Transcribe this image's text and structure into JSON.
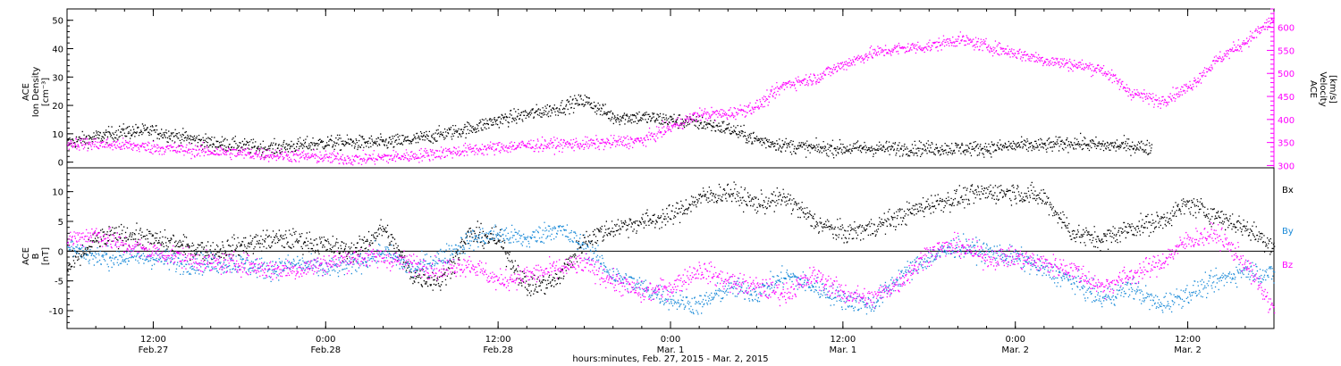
{
  "colors": {
    "black": "#000000",
    "magenta": "#ff00ff",
    "blue": "#1a8ad8"
  },
  "chart_data": [
    {
      "type": "scatter",
      "panel": "top",
      "ylabel_left": [
        "ACE",
        "Ion Density",
        "[cm⁻³]"
      ],
      "ylabel_right": [
        "ACE",
        "Velocity",
        "[km/s]"
      ],
      "ylim_left": [
        -2,
        54
      ],
      "ylim_right": [
        295,
        640
      ],
      "yticks_left": [
        0,
        10,
        20,
        30,
        40,
        50
      ],
      "yticks_right": [
        300,
        350,
        400,
        450,
        500,
        550,
        600
      ],
      "series": [
        {
          "axis": "left",
          "color": "black",
          "points_hours": [
            [
              0,
              7
            ],
            [
              2,
              9
            ],
            [
              4,
              11
            ],
            [
              6,
              11
            ],
            [
              8,
              9
            ],
            [
              10,
              7
            ],
            [
              12,
              6
            ],
            [
              14,
              5
            ],
            [
              16,
              6
            ],
            [
              18,
              7
            ],
            [
              20,
              7
            ],
            [
              22,
              7
            ],
            [
              24,
              8
            ],
            [
              26,
              10
            ],
            [
              28,
              12
            ],
            [
              30,
              15
            ],
            [
              32,
              17
            ],
            [
              34,
              19
            ],
            [
              36,
              22
            ],
            [
              38,
              16
            ],
            [
              40,
              16
            ],
            [
              42,
              15
            ],
            [
              44,
              14
            ],
            [
              46,
              12
            ],
            [
              48,
              8
            ],
            [
              50,
              6
            ],
            [
              52,
              5
            ],
            [
              54,
              5
            ],
            [
              56,
              5
            ],
            [
              58,
              5
            ],
            [
              60,
              5
            ],
            [
              62,
              5
            ],
            [
              64,
              5
            ],
            [
              66,
              6
            ],
            [
              68,
              6
            ],
            [
              70,
              7
            ],
            [
              72,
              6
            ],
            [
              74,
              6
            ],
            [
              75.5,
              5
            ]
          ]
        },
        {
          "axis": "right",
          "color": "magenta",
          "points_hours": [
            [
              0,
              350
            ],
            [
              4,
              345
            ],
            [
              8,
              335
            ],
            [
              12,
              328
            ],
            [
              16,
              322
            ],
            [
              20,
              315
            ],
            [
              24,
              322
            ],
            [
              28,
              335
            ],
            [
              32,
              345
            ],
            [
              36,
              348
            ],
            [
              40,
              355
            ],
            [
              42,
              385
            ],
            [
              44,
              412
            ],
            [
              46,
              413
            ],
            [
              48,
              430
            ],
            [
              50,
              478
            ],
            [
              52,
              490
            ],
            [
              54,
              520
            ],
            [
              56,
              545
            ],
            [
              58,
              555
            ],
            [
              60,
              560
            ],
            [
              62,
              575
            ],
            [
              64,
              560
            ],
            [
              66,
              545
            ],
            [
              68,
              530
            ],
            [
              70,
              520
            ],
            [
              72,
              510
            ],
            [
              74,
              460
            ],
            [
              76,
              440
            ],
            [
              78,
              470
            ],
            [
              80,
              530
            ],
            [
              82,
              570
            ],
            [
              84,
              620
            ]
          ]
        }
      ]
    },
    {
      "type": "scatter",
      "panel": "bottom",
      "ylabel_left": [
        "ACE",
        "B",
        "[nT]"
      ],
      "ylim": [
        -13,
        14
      ],
      "yticks": [
        -10,
        -5,
        0,
        5,
        10
      ],
      "legend": [
        "Bx",
        "By",
        "Bz"
      ],
      "series": [
        {
          "name": "Bx",
          "color": "black",
          "points_hours": [
            [
              0,
              -3
            ],
            [
              2,
              2
            ],
            [
              4,
              3
            ],
            [
              6,
              2
            ],
            [
              8,
              1
            ],
            [
              10,
              0
            ],
            [
              12,
              1
            ],
            [
              14,
              2
            ],
            [
              16,
              2
            ],
            [
              18,
              1
            ],
            [
              20,
              0
            ],
            [
              22,
              4
            ],
            [
              24,
              -4
            ],
            [
              26,
              -5
            ],
            [
              28,
              3
            ],
            [
              30,
              2
            ],
            [
              32,
              -6
            ],
            [
              34,
              -5
            ],
            [
              36,
              2
            ],
            [
              38,
              4
            ],
            [
              40,
              5
            ],
            [
              42,
              6
            ],
            [
              44,
              9
            ],
            [
              46,
              10
            ],
            [
              48,
              8
            ],
            [
              50,
              9
            ],
            [
              52,
              5
            ],
            [
              54,
              3
            ],
            [
              56,
              4
            ],
            [
              58,
              6
            ],
            [
              60,
              8
            ],
            [
              62,
              9
            ],
            [
              64,
              10
            ],
            [
              66,
              10
            ],
            [
              68,
              9
            ],
            [
              70,
              3
            ],
            [
              72,
              2
            ],
            [
              74,
              4
            ],
            [
              76,
              5
            ],
            [
              78,
              8
            ],
            [
              80,
              6
            ],
            [
              82,
              4
            ],
            [
              84,
              1
            ]
          ]
        },
        {
          "name": "By",
          "color": "blue",
          "points_hours": [
            [
              0,
              1
            ],
            [
              2,
              -1
            ],
            [
              4,
              -1
            ],
            [
              6,
              -1
            ],
            [
              8,
              -2
            ],
            [
              10,
              -2
            ],
            [
              12,
              -2
            ],
            [
              14,
              -3
            ],
            [
              16,
              -2
            ],
            [
              18,
              -3
            ],
            [
              20,
              -2
            ],
            [
              22,
              0
            ],
            [
              24,
              -3
            ],
            [
              26,
              -1
            ],
            [
              28,
              2
            ],
            [
              30,
              3
            ],
            [
              32,
              2
            ],
            [
              34,
              4
            ],
            [
              36,
              1
            ],
            [
              38,
              -4
            ],
            [
              40,
              -6
            ],
            [
              42,
              -8
            ],
            [
              44,
              -9
            ],
            [
              46,
              -6
            ],
            [
              48,
              -7
            ],
            [
              50,
              -4
            ],
            [
              52,
              -6
            ],
            [
              54,
              -8
            ],
            [
              56,
              -9
            ],
            [
              58,
              -4
            ],
            [
              60,
              -1
            ],
            [
              62,
              1
            ],
            [
              64,
              0
            ],
            [
              66,
              -1
            ],
            [
              68,
              -3
            ],
            [
              70,
              -5
            ],
            [
              72,
              -8
            ],
            [
              74,
              -6
            ],
            [
              76,
              -9
            ],
            [
              78,
              -7
            ],
            [
              80,
              -5
            ],
            [
              82,
              -3
            ],
            [
              84,
              -4
            ]
          ]
        },
        {
          "name": "Bz",
          "color": "magenta",
          "points_hours": [
            [
              0,
              2
            ],
            [
              2,
              3
            ],
            [
              4,
              1
            ],
            [
              6,
              0
            ],
            [
              8,
              -1
            ],
            [
              10,
              -2
            ],
            [
              12,
              -2
            ],
            [
              14,
              -3
            ],
            [
              16,
              -3
            ],
            [
              18,
              -2
            ],
            [
              20,
              -1
            ],
            [
              22,
              -1
            ],
            [
              24,
              -2
            ],
            [
              26,
              -3
            ],
            [
              28,
              -2
            ],
            [
              30,
              -5
            ],
            [
              32,
              -4
            ],
            [
              34,
              -3
            ],
            [
              36,
              -2
            ],
            [
              38,
              -5
            ],
            [
              40,
              -7
            ],
            [
              42,
              -6
            ],
            [
              44,
              -3
            ],
            [
              46,
              -5
            ],
            [
              48,
              -6
            ],
            [
              50,
              -7
            ],
            [
              52,
              -4
            ],
            [
              54,
              -7
            ],
            [
              56,
              -8
            ],
            [
              58,
              -5
            ],
            [
              60,
              0
            ],
            [
              62,
              1
            ],
            [
              64,
              -1
            ],
            [
              66,
              -1
            ],
            [
              68,
              -2
            ],
            [
              70,
              -3
            ],
            [
              72,
              -6
            ],
            [
              74,
              -4
            ],
            [
              76,
              -2
            ],
            [
              78,
              2
            ],
            [
              80,
              3
            ],
            [
              82,
              -2
            ],
            [
              84,
              -10
            ]
          ]
        }
      ]
    }
  ],
  "x_axis": {
    "start": "Feb. 27, 2015 06:00",
    "ticks": [
      {
        "hour": 6,
        "time": "12:00",
        "day": "Feb.27"
      },
      {
        "hour": 18,
        "time": "0:00",
        "day": "Feb.28"
      },
      {
        "hour": 30,
        "time": "12:00",
        "day": "Feb.28"
      },
      {
        "hour": 42,
        "time": "0:00",
        "day": "Mar. 1"
      },
      {
        "hour": 54,
        "time": "12:00",
        "day": "Mar. 1"
      },
      {
        "hour": 66,
        "time": "0:00",
        "day": "Mar. 2"
      },
      {
        "hour": 78,
        "time": "12:00",
        "day": "Mar. 2"
      }
    ],
    "xlabel": "hours:minutes, Feb. 27, 2015 - Mar.  2, 2015"
  }
}
